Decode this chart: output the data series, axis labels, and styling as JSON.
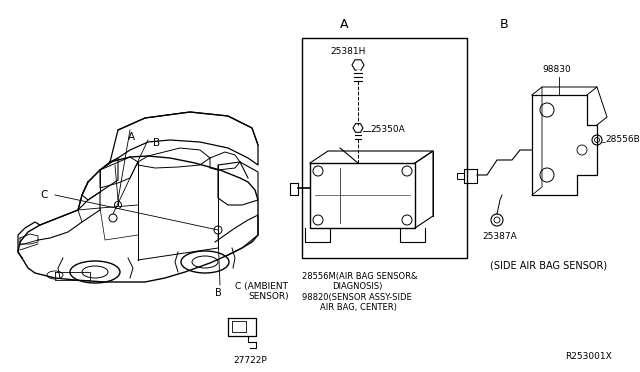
{
  "bg_color": "#ffffff",
  "line_color": "#000000",
  "fig_width": 6.4,
  "fig_height": 3.72,
  "dpi": 100,
  "section_A_label": "A",
  "section_B_label": "B",
  "part_25381H": "25381H",
  "part_25350A": "25350A",
  "part_28556M_text1": "28556M(AIR BAG SENSOR&",
  "part_28556M_text2": "DIAGNOSIS)",
  "part_98820_text1": "98820(SENSOR ASSY-SIDE",
  "part_98820_text2": "AIR BAG, CENTER)",
  "part_98830": "98830",
  "part_28556B": "28556B",
  "part_25387A": "25387A",
  "side_airbag_label": "(SIDE AIR BAG SENSOR)",
  "ambient_label1": "C (AMBIENT",
  "ambient_label2": "SENSOR)",
  "part_27722P": "27722P",
  "ref_code": "R253001X",
  "label_A": "A",
  "label_B": "B",
  "label_C": "C"
}
